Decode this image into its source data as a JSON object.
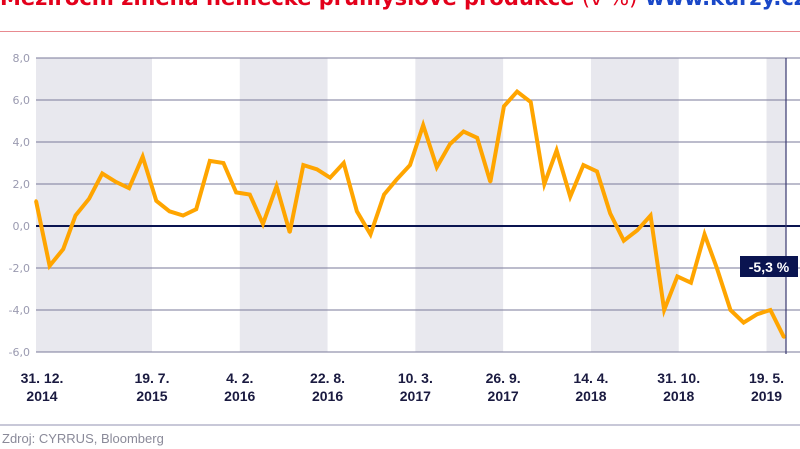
{
  "title": {
    "text": "Meziroční změna německé průmyslové produkce",
    "unit": "(v %)",
    "site": "www.kurzy.cz"
  },
  "source": "Zdroj: CYRRUS, Bloomberg",
  "colors": {
    "line": "#ffa500",
    "band": "#e8e8ee",
    "grid": "#7a7a9a",
    "zero": "#0a1450",
    "label_bg": "#0a1450",
    "title": "#e3001b"
  },
  "chart_data": {
    "type": "line",
    "x_start": "2014-12",
    "x_end": "2019-08",
    "x": [
      "2014-12",
      "2015-01",
      "2015-02",
      "2015-03",
      "2015-04",
      "2015-05",
      "2015-06",
      "2015-07",
      "2015-08",
      "2015-09",
      "2015-10",
      "2015-11",
      "2015-12",
      "2016-01",
      "2016-02",
      "2016-03",
      "2016-04",
      "2016-05",
      "2016-06",
      "2016-07",
      "2016-08",
      "2016-09",
      "2016-10",
      "2016-11",
      "2016-12",
      "2017-01",
      "2017-02",
      "2017-03",
      "2017-04",
      "2017-05",
      "2017-06",
      "2017-07",
      "2017-08",
      "2017-09",
      "2017-10",
      "2017-11",
      "2017-12",
      "2018-01",
      "2018-02",
      "2018-03",
      "2018-04",
      "2018-05",
      "2018-06",
      "2018-07",
      "2018-08",
      "2018-09",
      "2018-10",
      "2018-11",
      "2018-12",
      "2019-01",
      "2019-02",
      "2019-03",
      "2019-04",
      "2019-05",
      "2019-06",
      "2019-07",
      "2019-08"
    ],
    "values": [
      1.2,
      -1.9,
      -1.1,
      0.5,
      1.3,
      2.5,
      2.1,
      1.8,
      3.3,
      1.2,
      0.7,
      0.5,
      0.8,
      3.1,
      3.0,
      1.6,
      1.5,
      0.1,
      1.9,
      -0.3,
      2.9,
      2.7,
      2.3,
      3.0,
      0.7,
      -0.4,
      1.5,
      2.2,
      2.9,
      4.8,
      2.8,
      3.9,
      4.5,
      4.2,
      2.1,
      5.7,
      6.4,
      5.9,
      2.0,
      3.6,
      1.4,
      2.9,
      2.6,
      0.6,
      -0.7,
      -0.2,
      0.5,
      -4.0,
      -2.4,
      -2.7,
      -0.4,
      -2.0,
      -4.0,
      -4.6,
      -4.2,
      -4.0,
      -5.3
    ],
    "ylim": [
      -6,
      8
    ],
    "yticks": [
      "8,0",
      "6,0",
      "4,0",
      "2,0",
      "0,0",
      "-2,0",
      "-4,0",
      "-6,0"
    ],
    "ytick_values": [
      8,
      6,
      4,
      2,
      0,
      -2,
      -4,
      -6
    ],
    "xticks": [
      {
        "date": "2014-12-31",
        "line1": "31. 12.",
        "line2": "2014"
      },
      {
        "date": "2015-07-19",
        "line1": "19. 7.",
        "line2": "2015"
      },
      {
        "date": "2016-02-04",
        "line1": "4. 2.",
        "line2": "2016"
      },
      {
        "date": "2016-08-22",
        "line1": "22. 8.",
        "line2": "2016"
      },
      {
        "date": "2017-03-10",
        "line1": "10. 3.",
        "line2": "2017"
      },
      {
        "date": "2017-09-26",
        "line1": "26. 9.",
        "line2": "2017"
      },
      {
        "date": "2018-04-14",
        "line1": "14. 4.",
        "line2": "2018"
      },
      {
        "date": "2018-10-31",
        "line1": "31. 10.",
        "line2": "2018"
      },
      {
        "date": "2019-05-19",
        "line1": "19. 5.",
        "line2": "2019"
      }
    ],
    "last_value_label": "-5,3 %",
    "grid": true,
    "alternating_bands": true
  }
}
